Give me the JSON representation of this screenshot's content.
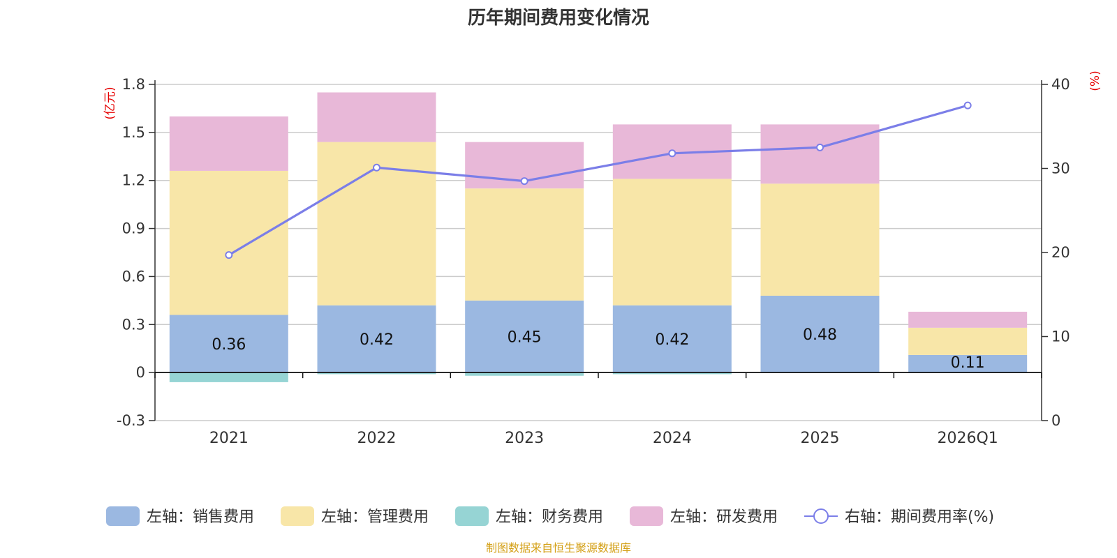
{
  "chart_data": {
    "type": "bar",
    "stacked": true,
    "title": "历年期间费用变化情况",
    "categories": [
      "2021",
      "2022",
      "2023",
      "2024",
      "2025",
      "2026Q1"
    ],
    "y_left": {
      "unit": "(亿元)",
      "ticks": [
        "-0.3",
        "0",
        "0.3",
        "0.6",
        "0.9",
        "1.2",
        "1.5",
        "1.8"
      ],
      "range": [
        -0.3,
        1.8
      ]
    },
    "y_right": {
      "unit": "(%)",
      "ticks": [
        "0",
        "10",
        "20",
        "30",
        "40"
      ],
      "range": [
        0,
        40
      ]
    },
    "series": [
      {
        "name": "左轴：销售费用",
        "axis": "left",
        "color": "#9bb8e1",
        "values": [
          0.36,
          0.42,
          0.45,
          0.42,
          0.48,
          0.11
        ],
        "labels": [
          "0.36",
          "0.42",
          "0.45",
          "0.42",
          "0.48",
          "0.11"
        ]
      },
      {
        "name": "左轴：管理费用",
        "axis": "left",
        "color": "#f8e6a8",
        "values": [
          0.9,
          1.02,
          0.7,
          0.79,
          0.7,
          0.17
        ]
      },
      {
        "name": "左轴：财务费用",
        "axis": "left",
        "color": "#96d4d4",
        "values": [
          -0.06,
          -0.01,
          -0.02,
          -0.01,
          0.0,
          0.0
        ]
      },
      {
        "name": "左轴：研发费用",
        "axis": "left",
        "color": "#e8b8d8",
        "values": [
          0.34,
          0.31,
          0.29,
          0.34,
          0.37,
          0.1
        ]
      },
      {
        "name": "右轴：期间费用率(%)",
        "axis": "right",
        "type": "line",
        "color": "#7b7ee8",
        "values": [
          19.7,
          30.1,
          28.5,
          31.8,
          32.5,
          37.5
        ]
      }
    ],
    "source": "制图数据来自恒生聚源数据库"
  }
}
